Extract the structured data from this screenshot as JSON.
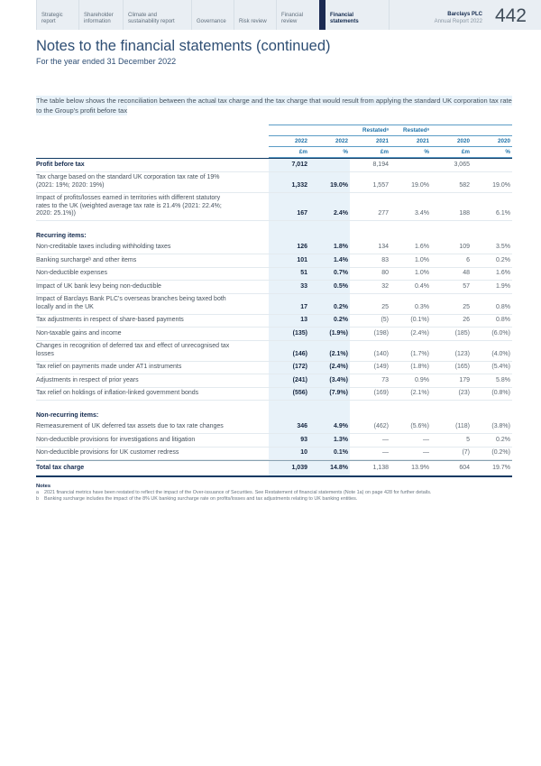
{
  "header": {
    "tabs": [
      {
        "label": "Strategic report",
        "active": false
      },
      {
        "label": "Shareholder information",
        "active": false
      },
      {
        "label": "Climate and sustainability report",
        "active": false
      },
      {
        "label": "Governance",
        "active": false
      },
      {
        "label": "Risk review",
        "active": false
      },
      {
        "label": "Financial review",
        "active": false
      },
      {
        "label": "Financial statements",
        "active": true
      }
    ],
    "brand": {
      "name": "Barclays PLC",
      "report": "Annual Report 2022"
    },
    "page_number": "442"
  },
  "title": "Notes to the financial statements (continued)",
  "subtitle": "For the year ended 31 December 2022",
  "intro": "The table below shows the reconciliation between the actual tax charge and the tax charge that would result from applying the standard UK corporation tax rate to the Group's profit before tax",
  "table": {
    "header": {
      "restated": [
        "",
        "",
        "Restatedᵃ",
        "Restatedᵃ",
        "",
        ""
      ],
      "years": [
        "2022",
        "2022",
        "2021",
        "2021",
        "2020",
        "2020"
      ],
      "units": [
        "£m",
        "%",
        "£m",
        "%",
        "£m",
        "%"
      ]
    },
    "rows": [
      {
        "type": "bold",
        "label": "Profit before tax",
        "values": [
          "7,012",
          "",
          "8,194",
          "",
          "3,065",
          ""
        ]
      },
      {
        "type": "normal",
        "label": "Tax charge based on the standard UK corporation tax rate of 19% (2021: 19%; 2020: 19%)",
        "values": [
          "1,332",
          "19.0%",
          "1,557",
          "19.0%",
          "582",
          "19.0%"
        ]
      },
      {
        "type": "normal",
        "label": "Impact of profits/losses earned in territories with different statutory rates to the UK (weighted average tax rate is 21.4% (2021: 22.4%; 2020: 25.1%))",
        "values": [
          "167",
          "2.4%",
          "277",
          "3.4%",
          "188",
          "6.1%"
        ]
      },
      {
        "type": "spacer"
      },
      {
        "type": "section",
        "label": "Recurring items:"
      },
      {
        "type": "normal",
        "label": "Non-creditable taxes including withholding taxes",
        "values": [
          "126",
          "1.8%",
          "134",
          "1.6%",
          "109",
          "3.5%"
        ]
      },
      {
        "type": "normal",
        "label": "Banking surchargeᵇ and other items",
        "values": [
          "101",
          "1.4%",
          "83",
          "1.0%",
          "6",
          "0.2%"
        ]
      },
      {
        "type": "normal",
        "label": "Non-deductible expenses",
        "values": [
          "51",
          "0.7%",
          "80",
          "1.0%",
          "48",
          "1.6%"
        ]
      },
      {
        "type": "normal",
        "label": "Impact of UK bank levy being non-deductible",
        "values": [
          "33",
          "0.5%",
          "32",
          "0.4%",
          "57",
          "1.9%"
        ]
      },
      {
        "type": "normal",
        "label": "Impact of Barclays Bank PLC's overseas branches being taxed both locally and in the UK",
        "values": [
          "17",
          "0.2%",
          "25",
          "0.3%",
          "25",
          "0.8%"
        ]
      },
      {
        "type": "normal",
        "label": "Tax adjustments in respect of share-based payments",
        "values": [
          "13",
          "0.2%",
          "(5)",
          "(0.1%)",
          "26",
          "0.8%"
        ]
      },
      {
        "type": "normal",
        "label": "Non-taxable gains and income",
        "values": [
          "(135)",
          "(1.9%)",
          "(198)",
          "(2.4%)",
          "(185)",
          "(6.0%)"
        ]
      },
      {
        "type": "normal",
        "label": "Changes in recognition of deferred tax and effect of unrecognised tax losses",
        "values": [
          "(146)",
          "(2.1%)",
          "(140)",
          "(1.7%)",
          "(123)",
          "(4.0%)"
        ]
      },
      {
        "type": "normal",
        "label": "Tax relief on payments made under AT1 instruments",
        "values": [
          "(172)",
          "(2.4%)",
          "(149)",
          "(1.8%)",
          "(165)",
          "(5.4%)"
        ]
      },
      {
        "type": "normal",
        "label": "Adjustments in respect of prior years",
        "values": [
          "(241)",
          "(3.4%)",
          "73",
          "0.9%",
          "179",
          "5.8%"
        ]
      },
      {
        "type": "normal",
        "label": "Tax relief on holdings of inflation-linked government bonds",
        "values": [
          "(556)",
          "(7.9%)",
          "(169)",
          "(2.1%)",
          "(23)",
          "(0.8%)"
        ]
      },
      {
        "type": "spacer"
      },
      {
        "type": "section",
        "label": "Non-recurring items:"
      },
      {
        "type": "normal",
        "label": "Remeasurement of UK deferred tax assets due to tax rate changes",
        "values": [
          "346",
          "4.9%",
          "(462)",
          "(5.6%)",
          "(118)",
          "(3.8%)"
        ]
      },
      {
        "type": "normal",
        "label": "Non-deductible provisions for investigations and litigation",
        "values": [
          "93",
          "1.3%",
          "—",
          "—",
          "5",
          "0.2%"
        ]
      },
      {
        "type": "normal",
        "label": "Non-deductible provisions for UK customer redress",
        "values": [
          "10",
          "0.1%",
          "—",
          "—",
          "(7)",
          "(0.2%)"
        ]
      },
      {
        "type": "total",
        "label": "Total tax charge",
        "values": [
          "1,039",
          "14.8%",
          "1,138",
          "13.9%",
          "604",
          "19.7%"
        ]
      }
    ]
  },
  "notes": {
    "title": "Notes",
    "items": [
      {
        "ref": "a",
        "text": "2021 financial metrics have been restated to reflect the impact of the Over-issuance of Securities. See Restatement of financial statements (Note 1a) on page 428 for further details."
      },
      {
        "ref": "b",
        "text": "Banking surcharge includes the impact of the 8% UK banking surcharge rate on profits/losses and tax adjustments relating to UK banking entities."
      }
    ]
  },
  "colors": {
    "accent_navy": "#132a4e",
    "header_blue": "#1d71a8",
    "title_blue": "#2e4e74",
    "highlight_blue": "#e8f2f9",
    "band_bg": "#e9eef3",
    "active_tab_bar": "#1b2a52"
  }
}
